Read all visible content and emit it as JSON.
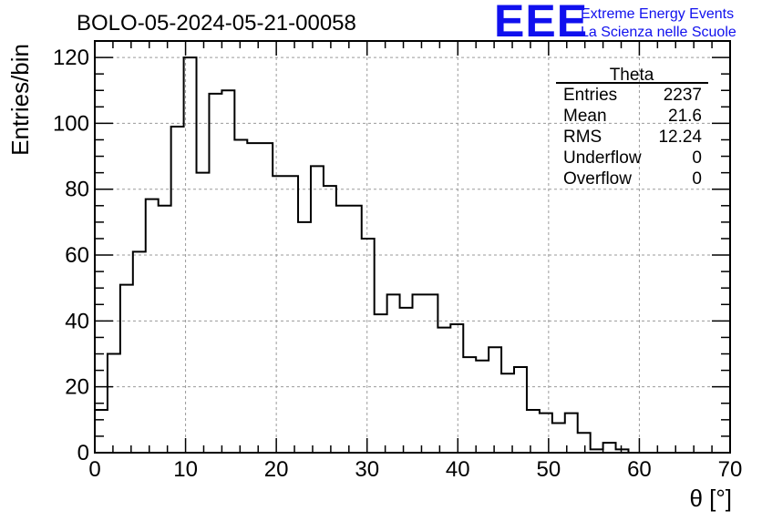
{
  "title": "BOLO-05-2024-05-21-00058",
  "logo": {
    "mark": "EEE",
    "line1": "Extreme Energy Events",
    "line2": "La Scienza nelle Scuole",
    "color": "#1010ee"
  },
  "stats": {
    "name": "Theta",
    "rows": [
      {
        "label": "Entries",
        "value": "2237"
      },
      {
        "label": "Mean",
        "value": "21.6"
      },
      {
        "label": "RMS",
        "value": "12.24"
      },
      {
        "label": "Underflow",
        "value": "0"
      },
      {
        "label": "Overflow",
        "value": "0"
      }
    ]
  },
  "chart_data": {
    "type": "bar",
    "histogram": true,
    "xlabel": "θ [°]",
    "ylabel": "Entries/bin",
    "xlim": [
      0,
      70
    ],
    "ylim": [
      0,
      125
    ],
    "x_ticks": [
      0,
      10,
      20,
      30,
      40,
      50,
      60,
      70
    ],
    "y_ticks": [
      0,
      20,
      40,
      60,
      80,
      100,
      120
    ],
    "grid": true,
    "bin_width": 1.4,
    "bin_edges_start": 0,
    "values": [
      13,
      30,
      51,
      61,
      77,
      75,
      99,
      120,
      85,
      109,
      110,
      95,
      94,
      94,
      84,
      84,
      70,
      87,
      81,
      75,
      75,
      65,
      42,
      48,
      44,
      48,
      48,
      38,
      39,
      29,
      28,
      32,
      24,
      26,
      13,
      12,
      9,
      12,
      6,
      1,
      3,
      1,
      0,
      0,
      0,
      0,
      0,
      0,
      0,
      0
    ],
    "line_color": "#000000"
  }
}
